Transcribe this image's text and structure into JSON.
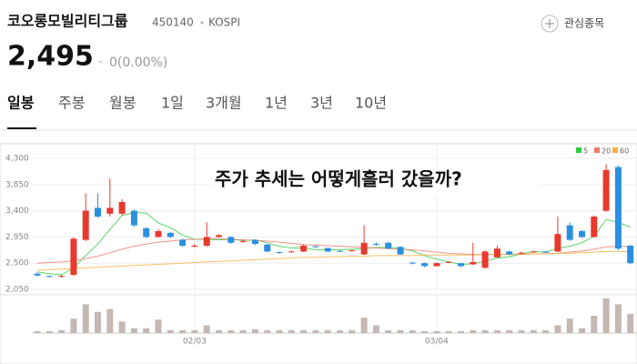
{
  "header": {
    "name": "코오롱모빌리티그룹",
    "code": "450140",
    "market": "KOSPI",
    "watch_button": "관심종목",
    "price": "2,495",
    "change": "0(0.00%)"
  },
  "tabs": [
    "일봉",
    "주봉",
    "월봉",
    "1일",
    "3개월",
    "1년",
    "3년",
    "10년"
  ],
  "overlay": "주가 추세는 어떻게흘러 갔을까?",
  "chart_data": {
    "type": "candlestick",
    "categories": [
      null,
      null,
      null,
      null,
      null,
      null,
      null,
      null,
      null,
      null,
      null,
      null,
      null,
      "02/03",
      null,
      null,
      null,
      null,
      null,
      null,
      null,
      null,
      null,
      null,
      null,
      null,
      null,
      null,
      null,
      null,
      null,
      null,
      null,
      "03/04",
      null,
      null,
      null,
      null,
      null,
      null,
      null,
      null,
      null,
      null,
      null,
      null,
      null,
      null,
      null,
      null
    ],
    "open": [
      2320,
      2280,
      2270,
      2300,
      2900,
      3450,
      3350,
      3350,
      3400,
      3100,
      2950,
      3020,
      2900,
      2790,
      2800,
      2950,
      2950,
      2870,
      2900,
      2820,
      2690,
      2690,
      2700,
      2790,
      2760,
      2710,
      2710,
      2650,
      2830,
      2850,
      2780,
      2510,
      2500,
      2450,
      2510,
      2500,
      2480,
      2420,
      2600,
      2700,
      2670,
      2690,
      2700,
      2700,
      3150,
      3050,
      2950,
      3400,
      4150,
      2800
    ],
    "high": [
      2340,
      2290,
      2300,
      2950,
      3700,
      3700,
      3950,
      3600,
      3420,
      3120,
      3080,
      3040,
      2920,
      2830,
      3200,
      3000,
      2960,
      2900,
      2910,
      2830,
      2700,
      2720,
      2820,
      2800,
      2770,
      2720,
      2730,
      3150,
      2860,
      2870,
      2790,
      2520,
      2510,
      2510,
      2540,
      2510,
      2850,
      2720,
      2800,
      2720,
      2700,
      2710,
      2710,
      3300,
      3200,
      3070,
      3320,
      4200,
      4180,
      2820
    ],
    "low": [
      2270,
      2250,
      2250,
      2280,
      2880,
      3280,
      3300,
      3320,
      3120,
      2930,
      2940,
      2930,
      2780,
      2770,
      2780,
      2940,
      2830,
      2850,
      2810,
      2690,
      2660,
      2680,
      2690,
      2770,
      2690,
      2690,
      2700,
      2640,
      2800,
      2740,
      2640,
      2480,
      2430,
      2440,
      2500,
      2430,
      2470,
      2410,
      2590,
      2640,
      2660,
      2680,
      2670,
      2690,
      2880,
      2930,
      2940,
      3380,
      2720,
      2480
    ],
    "close": [
      2290,
      2270,
      2280,
      2920,
      3400,
      3300,
      3450,
      3550,
      3150,
      2950,
      3050,
      2950,
      2800,
      2800,
      2950,
      2980,
      2850,
      2880,
      2830,
      2700,
      2680,
      2700,
      2800,
      2780,
      2700,
      2700,
      2720,
      2850,
      2820,
      2750,
      2650,
      2500,
      2450,
      2500,
      2520,
      2450,
      2520,
      2700,
      2750,
      2650,
      2680,
      2700,
      2680,
      3000,
      2900,
      2950,
      3300,
      4100,
      2750,
      2500
    ],
    "volume": [
      2,
      2,
      3,
      15,
      30,
      22,
      25,
      12,
      5,
      5,
      14,
      3,
      3,
      3,
      8,
      3,
      3,
      3,
      4,
      3,
      3,
      3,
      3,
      3,
      3,
      3,
      3,
      16,
      8,
      3,
      3,
      3,
      2,
      2,
      2,
      2,
      3,
      3,
      3,
      3,
      3,
      3,
      3,
      8,
      15,
      5,
      18,
      36,
      30,
      20
    ],
    "series": [
      {
        "name": "5",
        "color": "#2ecc40",
        "values": [
          2350,
          2320,
          2300,
          2420,
          2630,
          2830,
          3080,
          3320,
          3370,
          3360,
          3190,
          3110,
          2980,
          2910,
          2910,
          2900,
          2910,
          2890,
          2900,
          2850,
          2790,
          2760,
          2760,
          2730,
          2730,
          2730,
          2740,
          2750,
          2770,
          2770,
          2760,
          2710,
          2630,
          2570,
          2520,
          2480,
          2490,
          2530,
          2590,
          2610,
          2660,
          2700,
          2690,
          2760,
          2790,
          2850,
          2960,
          3250,
          3200,
          3120
        ]
      },
      {
        "name": "20",
        "color": "#f0786a",
        "values": [
          2500,
          2510,
          2520,
          2540,
          2580,
          2620,
          2680,
          2740,
          2790,
          2830,
          2860,
          2880,
          2900,
          2910,
          2920,
          2920,
          2910,
          2900,
          2890,
          2880,
          2860,
          2840,
          2820,
          2810,
          2800,
          2790,
          2780,
          2770,
          2760,
          2750,
          2740,
          2730,
          2710,
          2690,
          2670,
          2660,
          2650,
          2650,
          2650,
          2650,
          2650,
          2660,
          2660,
          2670,
          2690,
          2710,
          2740,
          2780,
          2790,
          2790
        ]
      },
      {
        "name": "60",
        "color": "#f5b041",
        "values": [
          2380,
          2390,
          2400,
          2410,
          2420,
          2430,
          2440,
          2450,
          2460,
          2470,
          2480,
          2490,
          2500,
          2510,
          2520,
          2530,
          2540,
          2550,
          2560,
          2570,
          2580,
          2590,
          2600,
          2600,
          2610,
          2610,
          2620,
          2620,
          2630,
          2630,
          2630,
          2630,
          2640,
          2640,
          2640,
          2640,
          2640,
          2650,
          2650,
          2650,
          2660,
          2660,
          2660,
          2670,
          2670,
          2680,
          2690,
          2700,
          2700,
          2700
        ]
      }
    ],
    "ylim": [
      2050,
      4300
    ],
    "yticks": [
      {
        "value": 2050,
        "label": "2,050"
      },
      {
        "value": 2500,
        "label": "2,500"
      },
      {
        "value": 2950,
        "label": "2,950"
      },
      {
        "value": 3400,
        "label": "3,400"
      },
      {
        "value": 3850,
        "label": "3,850"
      },
      {
        "value": 4300,
        "label": "4,300"
      }
    ],
    "up_color": "#e8392e",
    "down_color": "#2b8fe0",
    "volume_color": "#c4b8b2",
    "grid": true
  }
}
